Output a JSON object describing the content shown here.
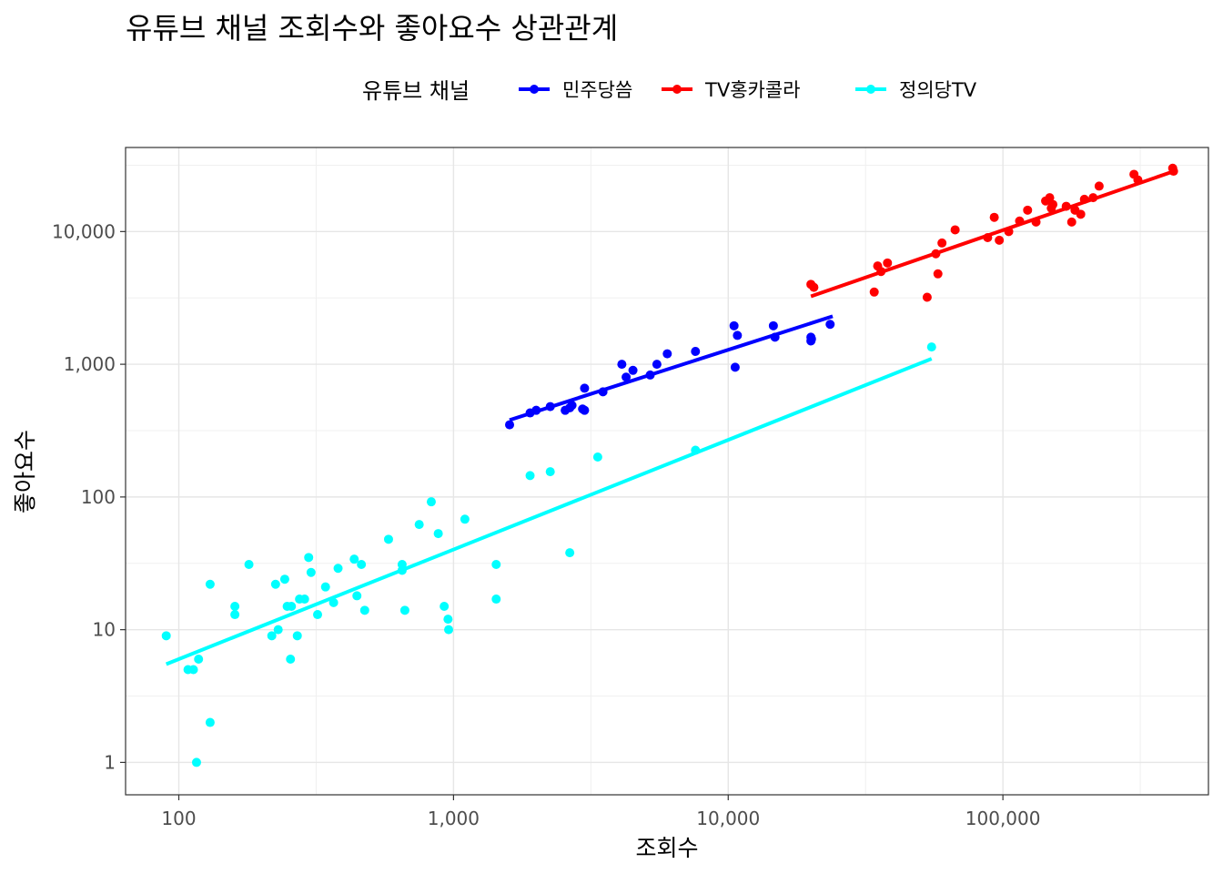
{
  "chart_data": {
    "type": "scatter",
    "title": "유튜브 채널 조회수와 좋아요수 상관관계",
    "xlabel": "조회수",
    "ylabel": "좋아요수",
    "x_scale": "log10",
    "y_scale": "log10",
    "xlim": [
      64,
      560000
    ],
    "ylim": [
      0.57,
      43000
    ],
    "x_ticks": [
      {
        "value": 100,
        "label": "100"
      },
      {
        "value": 1000,
        "label": "1,000"
      },
      {
        "value": 10000,
        "label": "10,000"
      },
      {
        "value": 100000,
        "label": "100,000"
      }
    ],
    "y_ticks": [
      {
        "value": 1,
        "label": "1"
      },
      {
        "value": 10,
        "label": "10"
      },
      {
        "value": 100,
        "label": "100"
      },
      {
        "value": 1000,
        "label": "1,000"
      },
      {
        "value": 10000,
        "label": "10,000"
      }
    ],
    "grid": true,
    "legend": {
      "title": "유튜브 채널",
      "position": "top"
    },
    "series": [
      {
        "name": "민주당씀",
        "color": "#0000ff",
        "trend": {
          "x": [
            1600,
            24000
          ],
          "y": [
            380,
            2300
          ]
        },
        "points": [
          [
            1600,
            350
          ],
          [
            1900,
            430
          ],
          [
            2000,
            450
          ],
          [
            2250,
            480
          ],
          [
            2550,
            450
          ],
          [
            2650,
            470
          ],
          [
            2700,
            490
          ],
          [
            2950,
            460
          ],
          [
            3000,
            660
          ],
          [
            3000,
            450
          ],
          [
            3500,
            620
          ],
          [
            4100,
            1000
          ],
          [
            4250,
            800
          ],
          [
            4500,
            900
          ],
          [
            5200,
            830
          ],
          [
            5500,
            1000
          ],
          [
            6000,
            1200
          ],
          [
            7600,
            1250
          ],
          [
            10500,
            1950
          ],
          [
            10800,
            1650
          ],
          [
            10600,
            950
          ],
          [
            14600,
            1950
          ],
          [
            14800,
            1600
          ],
          [
            20000,
            1600
          ],
          [
            20100,
            1550
          ],
          [
            20000,
            1500
          ],
          [
            23500,
            2000
          ]
        ]
      },
      {
        "name": "TV홍카콜라",
        "color": "#ff0000",
        "trend": {
          "x": [
            20000,
            420000
          ],
          "y": [
            3250,
            28500
          ]
        },
        "points": [
          [
            20000,
            4000
          ],
          [
            20500,
            3800
          ],
          [
            34000,
            3500
          ],
          [
            35000,
            5500
          ],
          [
            36000,
            5000
          ],
          [
            38000,
            5800
          ],
          [
            53000,
            3200
          ],
          [
            57000,
            6800
          ],
          [
            58000,
            4800
          ],
          [
            60000,
            8200
          ],
          [
            67000,
            10300
          ],
          [
            88000,
            9000
          ],
          [
            93000,
            12800
          ],
          [
            97000,
            8600
          ],
          [
            105000,
            10000
          ],
          [
            115000,
            12000
          ],
          [
            123000,
            14500
          ],
          [
            132000,
            11800
          ],
          [
            143000,
            17000
          ],
          [
            148000,
            18000
          ],
          [
            150000,
            15000
          ],
          [
            152000,
            16000
          ],
          [
            170000,
            15500
          ],
          [
            178000,
            11800
          ],
          [
            183000,
            14500
          ],
          [
            192000,
            13500
          ],
          [
            198000,
            17500
          ],
          [
            213000,
            18000
          ],
          [
            224000,
            22000
          ],
          [
            300000,
            27000
          ],
          [
            310000,
            24500
          ],
          [
            415000,
            30000
          ],
          [
            418000,
            28500
          ]
        ]
      },
      {
        "name": "정의당TV",
        "color": "#00ffff",
        "trend": {
          "x": [
            90,
            55000
          ],
          "y": [
            5.5,
            1100
          ]
        },
        "points": [
          [
            90,
            9
          ],
          [
            108,
            5
          ],
          [
            113,
            5
          ],
          [
            116,
            1
          ],
          [
            118,
            6
          ],
          [
            130,
            2
          ],
          [
            130,
            22
          ],
          [
            160,
            15
          ],
          [
            160,
            13
          ],
          [
            180,
            31
          ],
          [
            218,
            9
          ],
          [
            225,
            22
          ],
          [
            230,
            10
          ],
          [
            243,
            24
          ],
          [
            248,
            15
          ],
          [
            255,
            6
          ],
          [
            257,
            15
          ],
          [
            270,
            9
          ],
          [
            275,
            17
          ],
          [
            287,
            17
          ],
          [
            297,
            35
          ],
          [
            303,
            27
          ],
          [
            320,
            13
          ],
          [
            342,
            21
          ],
          [
            366,
            16
          ],
          [
            380,
            29
          ],
          [
            435,
            34
          ],
          [
            445,
            18
          ],
          [
            462,
            31
          ],
          [
            475,
            14
          ],
          [
            580,
            48
          ],
          [
            650,
            28
          ],
          [
            650,
            31
          ],
          [
            665,
            14
          ],
          [
            750,
            62
          ],
          [
            830,
            92
          ],
          [
            880,
            53
          ],
          [
            925,
            15
          ],
          [
            955,
            12
          ],
          [
            960,
            10
          ],
          [
            1100,
            68
          ],
          [
            1430,
            31
          ],
          [
            1430,
            17
          ],
          [
            1900,
            145
          ],
          [
            2250,
            155
          ],
          [
            2650,
            38
          ],
          [
            3350,
            200
          ],
          [
            7600,
            225
          ],
          [
            55000,
            1350
          ]
        ]
      }
    ]
  }
}
